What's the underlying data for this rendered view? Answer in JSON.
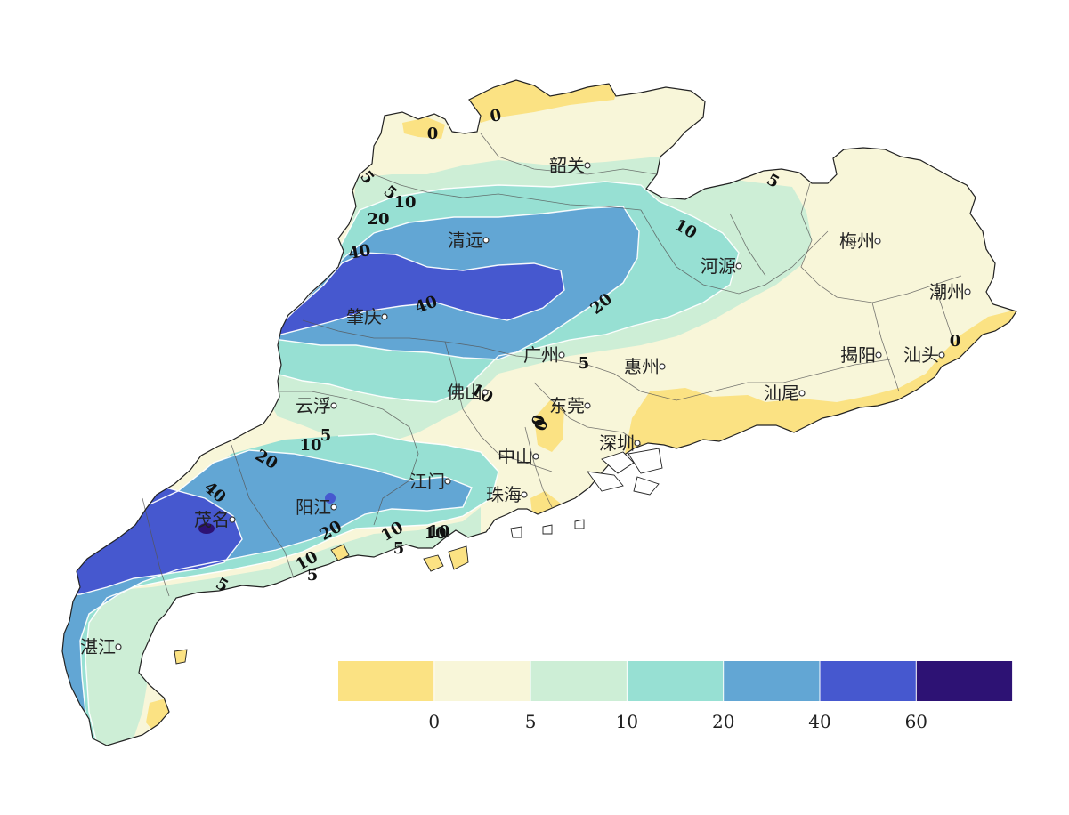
{
  "colors": {
    "below_0": "#fbe283",
    "0_5": "#f8f6d9",
    "5_10": "#cdeed6",
    "10_20": "#97e0d3",
    "20_40": "#62a6d4",
    "40_60": "#4658cf",
    "60_plus": "#2d1274"
  },
  "legend": {
    "bins": [
      {
        "key": "below_0",
        "color": "#fbe283"
      },
      {
        "key": "0_5",
        "color": "#f8f6d9"
      },
      {
        "key": "5_10",
        "color": "#cdeed6"
      },
      {
        "key": "10_20",
        "color": "#97e0d3"
      },
      {
        "key": "20_40",
        "color": "#62a6d4"
      },
      {
        "key": "40_60",
        "color": "#4658cf"
      },
      {
        "key": "60_plus",
        "color": "#2d1274"
      }
    ],
    "ticks": [
      "0",
      "5",
      "10",
      "20",
      "40",
      "60"
    ]
  },
  "cities": [
    {
      "key": "shaoguan",
      "name": "韶关"
    },
    {
      "key": "qingyuan",
      "name": "清远"
    },
    {
      "key": "meizhou",
      "name": "梅州"
    },
    {
      "key": "heyuan",
      "name": "河源"
    },
    {
      "key": "chaozhou",
      "name": "潮州"
    },
    {
      "key": "zhaoqing",
      "name": "肇庆"
    },
    {
      "key": "guangzhou",
      "name": "广州"
    },
    {
      "key": "huizhou",
      "name": "惠州"
    },
    {
      "key": "jieyang",
      "name": "揭阳"
    },
    {
      "key": "shantou",
      "name": "汕头"
    },
    {
      "key": "shanwei",
      "name": "汕尾"
    },
    {
      "key": "yunfu",
      "name": "云浮"
    },
    {
      "key": "foshan",
      "name": "佛山"
    },
    {
      "key": "dongguan",
      "name": "东莞"
    },
    {
      "key": "shenzhen",
      "name": "深圳"
    },
    {
      "key": "zhongshan",
      "name": "中山"
    },
    {
      "key": "jiangmen",
      "name": "江门"
    },
    {
      "key": "zhuhai",
      "name": "珠海"
    },
    {
      "key": "yangjiang",
      "name": "阳江"
    },
    {
      "key": "maoming",
      "name": "茂名"
    },
    {
      "key": "zhanjiang",
      "name": "湛江"
    }
  ],
  "contour_labels": [
    "0",
    "0",
    "5",
    "5",
    "10",
    "20",
    "40",
    "40",
    "20",
    "10",
    "5",
    "5",
    "10",
    "10",
    "0",
    "0",
    "10",
    "5",
    "20",
    "40",
    "20",
    "10",
    "5",
    "10",
    "5",
    "10",
    "5",
    "0"
  ]
}
